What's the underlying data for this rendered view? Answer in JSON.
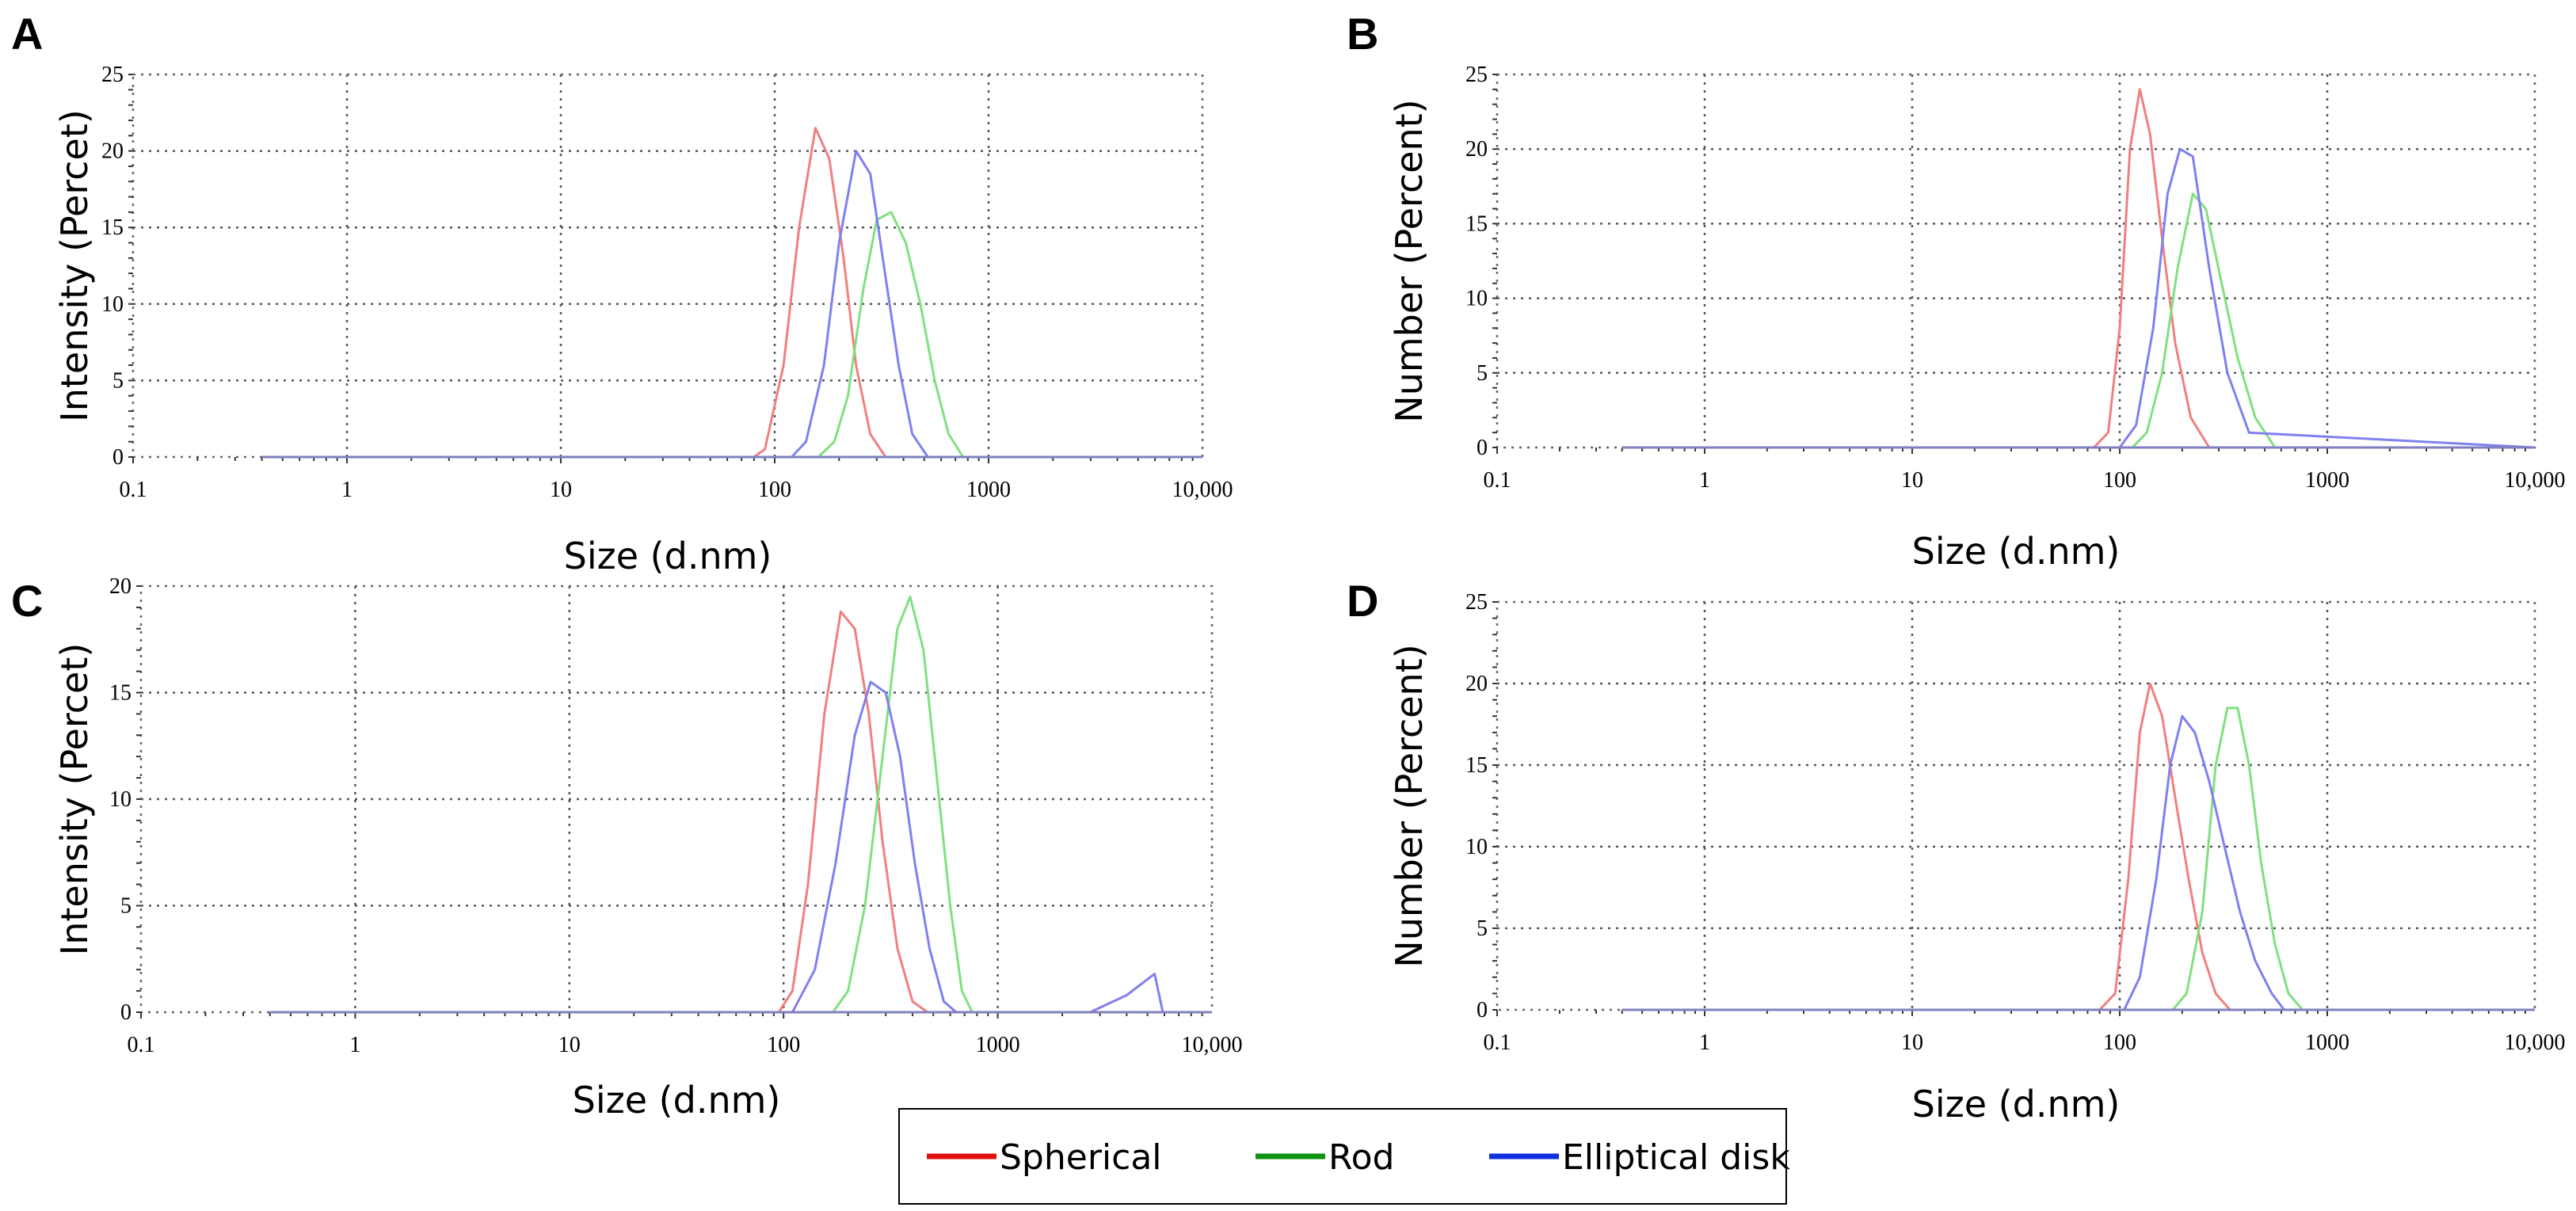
{
  "figure": {
    "legend": [
      {
        "label": "Spherical",
        "color": "#e01010"
      },
      {
        "label": "Rod",
        "color": "#109010"
      },
      {
        "label": "Elliptical disk",
        "color": "#1030e0"
      }
    ]
  },
  "chart_data": [
    {
      "panel": "A",
      "type": "line",
      "xlabel": "Size (d.nm)",
      "ylabel": "Intensity (Percet)",
      "xscale": "log",
      "xlim": [
        0.1,
        10000
      ],
      "xticks": [
        0.1,
        1,
        10,
        100,
        1000,
        10000
      ],
      "xtick_labels": [
        "0.1",
        "1",
        "10",
        "100",
        "1000",
        "10,000"
      ],
      "ylim": [
        0,
        25
      ],
      "yticks": [
        0,
        5,
        10,
        15,
        20,
        25
      ],
      "ytick_labels": [
        "0",
        "5",
        "10",
        "15",
        "20",
        "25"
      ],
      "series": [
        {
          "name": "Spherical",
          "color": "#f08080",
          "x": [
            0.4,
            80,
            90,
            110,
            130,
            155,
            180,
            210,
            240,
            280,
            330,
            10000
          ],
          "y": [
            0,
            0,
            0.5,
            6,
            15,
            21.5,
            19.5,
            13,
            6,
            1.5,
            0,
            0
          ]
        },
        {
          "name": "Rod",
          "color": "#80e080",
          "x": [
            0.4,
            160,
            190,
            220,
            260,
            300,
            350,
            410,
            480,
            560,
            650,
            760,
            10000
          ],
          "y": [
            0,
            0,
            1,
            4,
            11,
            15.5,
            16,
            14,
            10,
            5,
            1.5,
            0,
            0
          ]
        },
        {
          "name": "Elliptical disk",
          "color": "#8080f0",
          "x": [
            0.4,
            120,
            140,
            170,
            200,
            240,
            280,
            320,
            380,
            440,
            520,
            10000
          ],
          "y": [
            0,
            0,
            1,
            6,
            14,
            20,
            18.5,
            13,
            6,
            1.5,
            0,
            0
          ]
        }
      ]
    },
    {
      "panel": "B",
      "type": "line",
      "xlabel": "Size (d.nm)",
      "ylabel": "Number (Percent)",
      "xscale": "log",
      "xlim": [
        0.1,
        10000
      ],
      "xticks": [
        0.1,
        1,
        10,
        100,
        1000,
        10000
      ],
      "xtick_labels": [
        "0.1",
        "1",
        "10",
        "100",
        "1000",
        "10,000"
      ],
      "ylim": [
        0,
        25
      ],
      "yticks": [
        0,
        5,
        10,
        15,
        20,
        25
      ],
      "ytick_labels": [
        "0",
        "5",
        "10",
        "15",
        "20",
        "25"
      ],
      "series": [
        {
          "name": "Spherical",
          "color": "#f08080",
          "x": [
            0.4,
            75,
            88,
            100,
            112,
            125,
            140,
            160,
            185,
            220,
            270,
            10000
          ],
          "y": [
            0,
            0,
            1,
            8,
            20,
            24,
            21,
            14,
            7,
            2,
            0,
            0
          ]
        },
        {
          "name": "Rod",
          "color": "#80e080",
          "x": [
            0.4,
            115,
            135,
            160,
            190,
            225,
            260,
            310,
            370,
            450,
            560,
            10000
          ],
          "y": [
            0,
            0,
            1,
            5,
            12,
            17,
            16,
            11,
            6,
            2,
            0,
            0
          ]
        },
        {
          "name": "Elliptical disk",
          "color": "#8080f0",
          "x": [
            0.4,
            100,
            120,
            145,
            170,
            195,
            225,
            270,
            330,
            420,
            10000
          ],
          "y": [
            0,
            0,
            1.5,
            8,
            17,
            20,
            19.5,
            12,
            5,
            1,
            0
          ]
        }
      ]
    },
    {
      "panel": "C",
      "type": "line",
      "xlabel": "Size (d.nm)",
      "ylabel": "Intensity (Percet)",
      "xscale": "log",
      "xlim": [
        0.1,
        10000
      ],
      "xticks": [
        0.1,
        1,
        10,
        100,
        1000,
        10000
      ],
      "xtick_labels": [
        "0.1",
        "1",
        "10",
        "100",
        "1000",
        "10,000"
      ],
      "ylim": [
        0,
        20
      ],
      "yticks": [
        0,
        5,
        10,
        15,
        20
      ],
      "ytick_labels": [
        "0",
        "5",
        "10",
        "15",
        "20"
      ],
      "series": [
        {
          "name": "Spherical",
          "color": "#f08080",
          "x": [
            0.4,
            95,
            110,
            130,
            155,
            185,
            215,
            250,
            290,
            340,
            400,
            470,
            10000
          ],
          "y": [
            0,
            0,
            1,
            6,
            14,
            18.8,
            18,
            14,
            8,
            3,
            0.5,
            0,
            0
          ]
        },
        {
          "name": "Rod",
          "color": "#80e080",
          "x": [
            0.4,
            170,
            200,
            240,
            290,
            340,
            390,
            450,
            520,
            600,
            680,
            760,
            10000
          ],
          "y": [
            0,
            0,
            1,
            5,
            12,
            18,
            19.5,
            17,
            11,
            5,
            1,
            0,
            0
          ]
        },
        {
          "name": "Elliptical disk",
          "color": "#8080f0",
          "x": [
            0.4,
            110,
            140,
            175,
            215,
            255,
            300,
            350,
            410,
            480,
            560,
            640,
            2700,
            4000,
            5400,
            5900,
            10000
          ],
          "y": [
            0,
            0,
            2,
            7,
            13,
            15.5,
            15,
            12,
            7,
            3,
            0.5,
            0,
            0,
            0.8,
            1.8,
            0,
            0
          ]
        }
      ]
    },
    {
      "panel": "D",
      "type": "line",
      "xlabel": "Size (d.nm)",
      "ylabel": "Number (Percent)",
      "xscale": "log",
      "xlim": [
        0.1,
        10000
      ],
      "xticks": [
        0.1,
        1,
        10,
        100,
        1000,
        10000
      ],
      "xtick_labels": [
        "0.1",
        "1",
        "10",
        "100",
        "1000",
        "10,000"
      ],
      "ylim": [
        0,
        25
      ],
      "yticks": [
        0,
        5,
        10,
        15,
        20,
        25
      ],
      "ytick_labels": [
        "0",
        "5",
        "10",
        "15",
        "20",
        "25"
      ],
      "series": [
        {
          "name": "Spherical",
          "color": "#f08080",
          "x": [
            0.4,
            80,
            95,
            110,
            125,
            140,
            160,
            185,
            215,
            250,
            290,
            340,
            10000
          ],
          "y": [
            0,
            0,
            1,
            8,
            17,
            20,
            18,
            13,
            8,
            3.5,
            1,
            0,
            0
          ]
        },
        {
          "name": "Rod",
          "color": "#80e080",
          "x": [
            0.4,
            180,
            210,
            250,
            290,
            330,
            370,
            420,
            480,
            560,
            650,
            760,
            10000
          ],
          "y": [
            0,
            0,
            1,
            6,
            15,
            18.5,
            18.5,
            15,
            9,
            4,
            1,
            0,
            0
          ]
        },
        {
          "name": "Elliptical disk",
          "color": "#8080f0",
          "x": [
            0.4,
            105,
            125,
            150,
            175,
            200,
            230,
            270,
            320,
            380,
            450,
            540,
            620,
            10000
          ],
          "y": [
            0,
            0,
            2,
            8,
            15,
            18,
            17,
            14,
            10,
            6,
            3,
            1,
            0,
            0
          ]
        }
      ]
    }
  ]
}
